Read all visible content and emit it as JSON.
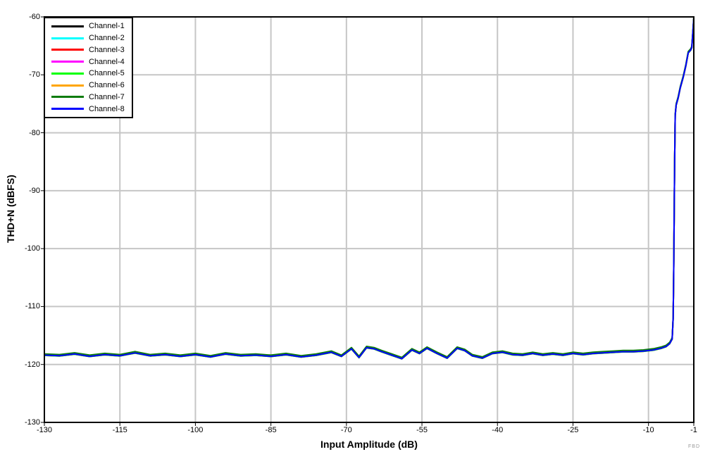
{
  "figure": {
    "watermark": "FBD"
  },
  "chart_data": {
    "type": "line",
    "title": "",
    "xlabel": "Input Amplitude (dB)",
    "ylabel": "THD+N (dBFS)",
    "xlim": [
      -130,
      -1
    ],
    "ylim": [
      -130,
      -60
    ],
    "x_ticks": [
      -130,
      -115,
      -100,
      -85,
      -70,
      -55,
      -40,
      -25,
      -10,
      -1
    ],
    "y_ticks": [
      -60,
      -70,
      -80,
      -90,
      -100,
      -110,
      -120,
      -130
    ],
    "grid": true,
    "grid_color": "#c6c6c6",
    "axis_color": "#000000",
    "legend_position": "top-left",
    "x": [
      -130,
      -127,
      -124,
      -121,
      -118,
      -115,
      -112,
      -109,
      -106,
      -103,
      -100,
      -97,
      -94,
      -91,
      -88,
      -85,
      -82,
      -79,
      -76,
      -73,
      -71,
      -69,
      -67.5,
      -66,
      -64.5,
      -63,
      -61,
      -59,
      -57,
      -55.5,
      -54,
      -52,
      -50,
      -48,
      -46.5,
      -45,
      -43,
      -41,
      -39,
      -37,
      -35,
      -33,
      -31,
      -29,
      -27,
      -25,
      -23,
      -21,
      -19,
      -17,
      -15,
      -13,
      -11,
      -9,
      -7.5,
      -6.5,
      -5.8,
      -5.3,
      -5.1,
      -5.0,
      -4.9,
      -4.8,
      -4.7,
      -4.5,
      -4.1,
      -3.7,
      -3.1,
      -2.6,
      -2.1,
      -1.6,
      -1.4,
      -1.25,
      -1.1,
      -1.0
    ],
    "base_values": [
      -118.4,
      -118.5,
      -118.2,
      -118.6,
      -118.3,
      -118.5,
      -118.0,
      -118.5,
      -118.3,
      -118.6,
      -118.3,
      -118.7,
      -118.2,
      -118.5,
      -118.4,
      -118.6,
      -118.3,
      -118.7,
      -118.4,
      -117.9,
      -118.6,
      -117.3,
      -118.8,
      -117.1,
      -117.3,
      -117.8,
      -118.4,
      -119.0,
      -117.5,
      -118.1,
      -117.2,
      -118.1,
      -118.9,
      -117.2,
      -117.6,
      -118.5,
      -118.9,
      -118.1,
      -117.9,
      -118.3,
      -118.4,
      -118.1,
      -118.4,
      -118.2,
      -118.4,
      -118.1,
      -118.3,
      -118.1,
      -118.0,
      -117.9,
      -117.8,
      -117.8,
      -117.7,
      -117.5,
      -117.2,
      -116.9,
      -116.4,
      -115.6,
      -112,
      -105,
      -95,
      -85,
      -77,
      -75.2,
      -74.0,
      -72.3,
      -70.4,
      -68.5,
      -66.2,
      -65.7,
      -65.3,
      -63.5,
      -61.5,
      -60.2
    ],
    "series": [
      {
        "name": "Channel-1",
        "color": "#000000",
        "offset_dB": 0.0
      },
      {
        "name": "Channel-2",
        "color": "#00FFFF",
        "offset_dB": 0.04
      },
      {
        "name": "Channel-3",
        "color": "#FF0000",
        "offset_dB": -0.04
      },
      {
        "name": "Channel-4",
        "color": "#FF00FF",
        "offset_dB": 0.04
      },
      {
        "name": "Channel-5",
        "color": "#00FF00",
        "offset_dB": -0.04
      },
      {
        "name": "Channel-6",
        "color": "#FFA500",
        "offset_dB": 0.04
      },
      {
        "name": "Channel-7",
        "color": "#0E7C0E",
        "offset_dB": 0.22
      },
      {
        "name": "Channel-8",
        "color": "#0000FF",
        "offset_dB": 0.0
      }
    ]
  }
}
